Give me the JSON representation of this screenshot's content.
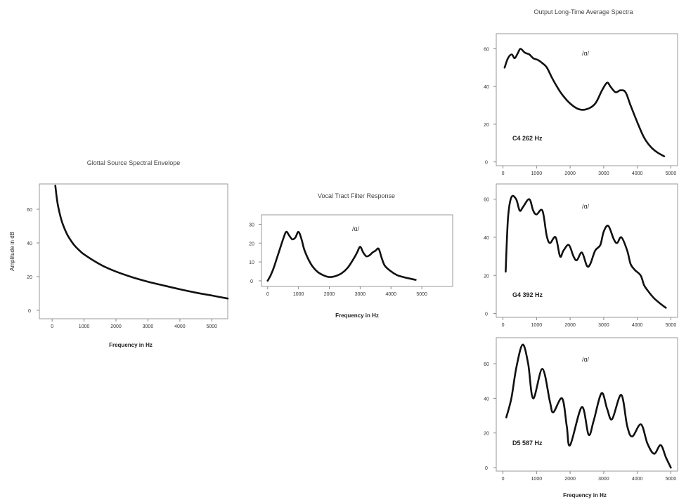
{
  "chart_data": [
    {
      "type": "line",
      "title": "Glottal Source Spectral Envelope",
      "xlabel": "Frequency in Hz",
      "ylabel": "Amplitude in dB",
      "xlim": [
        -400,
        5500
      ],
      "ylim": [
        -5,
        75
      ],
      "xticks": [
        0,
        1000,
        2000,
        3000,
        4000,
        5000
      ],
      "yticks": [
        0,
        20,
        40,
        60
      ],
      "grid": false,
      "annotation": "",
      "note": "",
      "series": [
        {
          "x": [
            100,
            150,
            200,
            300,
            400,
            500,
            700,
            900,
            1000,
            1300,
            1600,
            2000,
            2500,
            3000,
            3500,
            4000,
            4500,
            5000,
            5500
          ],
          "y": [
            74,
            66,
            60.5,
            53,
            48,
            44,
            38.5,
            34.7,
            33.2,
            29.5,
            26.3,
            23,
            19.7,
            17,
            14.7,
            12.5,
            10.5,
            8.8,
            7
          ]
        }
      ]
    },
    {
      "type": "line",
      "title": "Vocal Tract Filter Response",
      "xlabel": "Frequency in Hz",
      "ylabel": "",
      "xlim": [
        -200,
        6000
      ],
      "ylim": [
        -3,
        35
      ],
      "xticks": [
        0,
        1000,
        2000,
        3000,
        4000,
        5000
      ],
      "yticks": [
        0,
        10,
        20,
        30
      ],
      "grid": false,
      "annotation": "/ɑ/",
      "note": "",
      "series": [
        {
          "x": [
            0,
            100,
            200,
            300,
            400,
            500,
            600,
            700,
            800,
            900,
            1000,
            1100,
            1200,
            1400,
            1600,
            1800,
            2000,
            2200,
            2400,
            2600,
            2800,
            2900,
            3000,
            3100,
            3200,
            3300,
            3400,
            3500,
            3600,
            3700,
            3800,
            4000,
            4200,
            4400,
            4600,
            4800
          ],
          "y": [
            0,
            3,
            7,
            12,
            17,
            22,
            26,
            24,
            22,
            23,
            26,
            22,
            16,
            9,
            5,
            3,
            2,
            2.5,
            4,
            7,
            12,
            15,
            18,
            15,
            13,
            13.5,
            15,
            16,
            17,
            12,
            8,
            5,
            3,
            2,
            1.2,
            0.5
          ]
        }
      ]
    },
    {
      "type": "line",
      "title": "Output Long-Time Average Spectra",
      "xlabel": "",
      "ylabel": "",
      "xlim": [
        -200,
        5200
      ],
      "ylim": [
        -2,
        68
      ],
      "xticks": [
        0,
        1000,
        2000,
        3000,
        4000,
        5000
      ],
      "yticks": [
        0,
        20,
        40,
        60
      ],
      "grid": false,
      "annotation": "/ɑ/",
      "note": "C4 262 Hz",
      "series": [
        {
          "x": [
            50,
            150,
            262,
            350,
            450,
            524,
            650,
            786,
            900,
            1048,
            1200,
            1310,
            1450,
            1572,
            1750,
            2000,
            2250,
            2500,
            2750,
            2950,
            3100,
            3200,
            3350,
            3500,
            3650,
            3800,
            4000,
            4200,
            4400,
            4600,
            4800
          ],
          "y": [
            50,
            55,
            57,
            55,
            58,
            60,
            58,
            57,
            55,
            54,
            52,
            50,
            45,
            41,
            36,
            31,
            28,
            28,
            31,
            38,
            42,
            40,
            37,
            38,
            37,
            30,
            21,
            13,
            8,
            5,
            3
          ]
        }
      ]
    },
    {
      "type": "line",
      "title": "",
      "xlabel": "",
      "ylabel": "",
      "xlim": [
        -200,
        5200
      ],
      "ylim": [
        -2,
        68
      ],
      "xticks": [
        0,
        1000,
        2000,
        3000,
        4000,
        5000
      ],
      "yticks": [
        0,
        20,
        40,
        60
      ],
      "grid": false,
      "annotation": "/ɑ/",
      "note": "G4 392 Hz",
      "series": [
        {
          "x": [
            80,
            150,
            250,
            392,
            500,
            600,
            784,
            900,
            1000,
            1176,
            1300,
            1400,
            1568,
            1700,
            1800,
            1960,
            2100,
            2200,
            2352,
            2500,
            2600,
            2744,
            2900,
            3000,
            3136,
            3300,
            3400,
            3528,
            3700,
            3800,
            3920,
            4100,
            4200,
            4312,
            4500,
            4700,
            4850
          ],
          "y": [
            22,
            50,
            61,
            60,
            54,
            56,
            60,
            54,
            52,
            54,
            41,
            37,
            40,
            30,
            33,
            36,
            30,
            28,
            32,
            25,
            26,
            33,
            36,
            43,
            46,
            39,
            37,
            40,
            33,
            26,
            23,
            20,
            15,
            12,
            8,
            5,
            3
          ]
        }
      ]
    },
    {
      "type": "line",
      "title": "",
      "xlabel": "Frequency in Hz",
      "ylabel": "",
      "xlim": [
        -200,
        5200
      ],
      "ylim": [
        -2,
        75
      ],
      "xticks": [
        0,
        1000,
        2000,
        3000,
        4000,
        5000
      ],
      "yticks": [
        0,
        20,
        40,
        60
      ],
      "grid": false,
      "annotation": "/ɑ/",
      "note": "D5 587 Hz",
      "series": [
        {
          "x": [
            100,
            250,
            400,
            587,
            750,
            900,
            1174,
            1400,
            1500,
            1761,
            1900,
            2000,
            2348,
            2550,
            2700,
            2935,
            3100,
            3250,
            3522,
            3700,
            3850,
            4109,
            4300,
            4500,
            4696,
            4850,
            5000
          ],
          "y": [
            29,
            40,
            58,
            71,
            60,
            40,
            57,
            38,
            32,
            40,
            24,
            13,
            35,
            19,
            27,
            43,
            34,
            28,
            42,
            24,
            18,
            25,
            14,
            8,
            13,
            6,
            0
          ]
        }
      ]
    }
  ]
}
